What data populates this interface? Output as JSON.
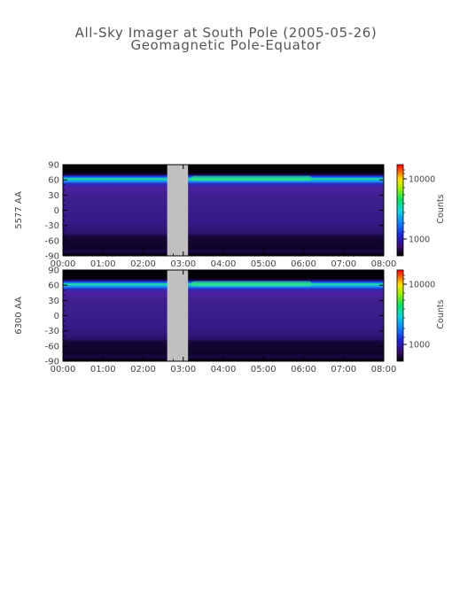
{
  "title": "All-Sky Imager at South Pole (2005-05-26)",
  "subtitle": "Geomagnetic Pole-Equator",
  "chart_data": [
    {
      "type": "heatmap",
      "ylabel": "5577 AA",
      "x_ticks": [
        "00:00",
        "01:00",
        "02:00",
        "03:00",
        "04:00",
        "05:00",
        "06:00",
        "07:00",
        "08:00"
      ],
      "xlim_hours": [
        0,
        8
      ],
      "y_ticks": [
        90,
        60,
        30,
        0,
        -30,
        -60,
        -90
      ],
      "ylim": [
        -90,
        90
      ],
      "data_gap_hours": [
        2.6,
        3.12
      ],
      "emission_band_latitude": 60,
      "colorbar": {
        "label": "Counts",
        "tick_labels": [
          "10000",
          "1000"
        ]
      }
    },
    {
      "type": "heatmap",
      "ylabel": "6300 AA",
      "x_ticks": [
        "00:00",
        "01:00",
        "02:00",
        "03:00",
        "04:00",
        "05:00",
        "06:00",
        "07:00",
        "08:00"
      ],
      "xlim_hours": [
        0,
        8
      ],
      "y_ticks": [
        90,
        60,
        30,
        0,
        -30,
        -60,
        -90
      ],
      "ylim": [
        -90,
        90
      ],
      "data_gap_hours": [
        2.6,
        3.12
      ],
      "emission_band_latitude": 60,
      "colorbar": {
        "label": "Counts",
        "tick_labels": [
          "10000",
          "1000"
        ]
      }
    }
  ],
  "colors": {
    "gap": "#c0c0c0",
    "background_field": "#3c1f8c",
    "band_core": "#18e8a0",
    "band_edge": "#1a70ff",
    "top_dark": "#000000"
  }
}
